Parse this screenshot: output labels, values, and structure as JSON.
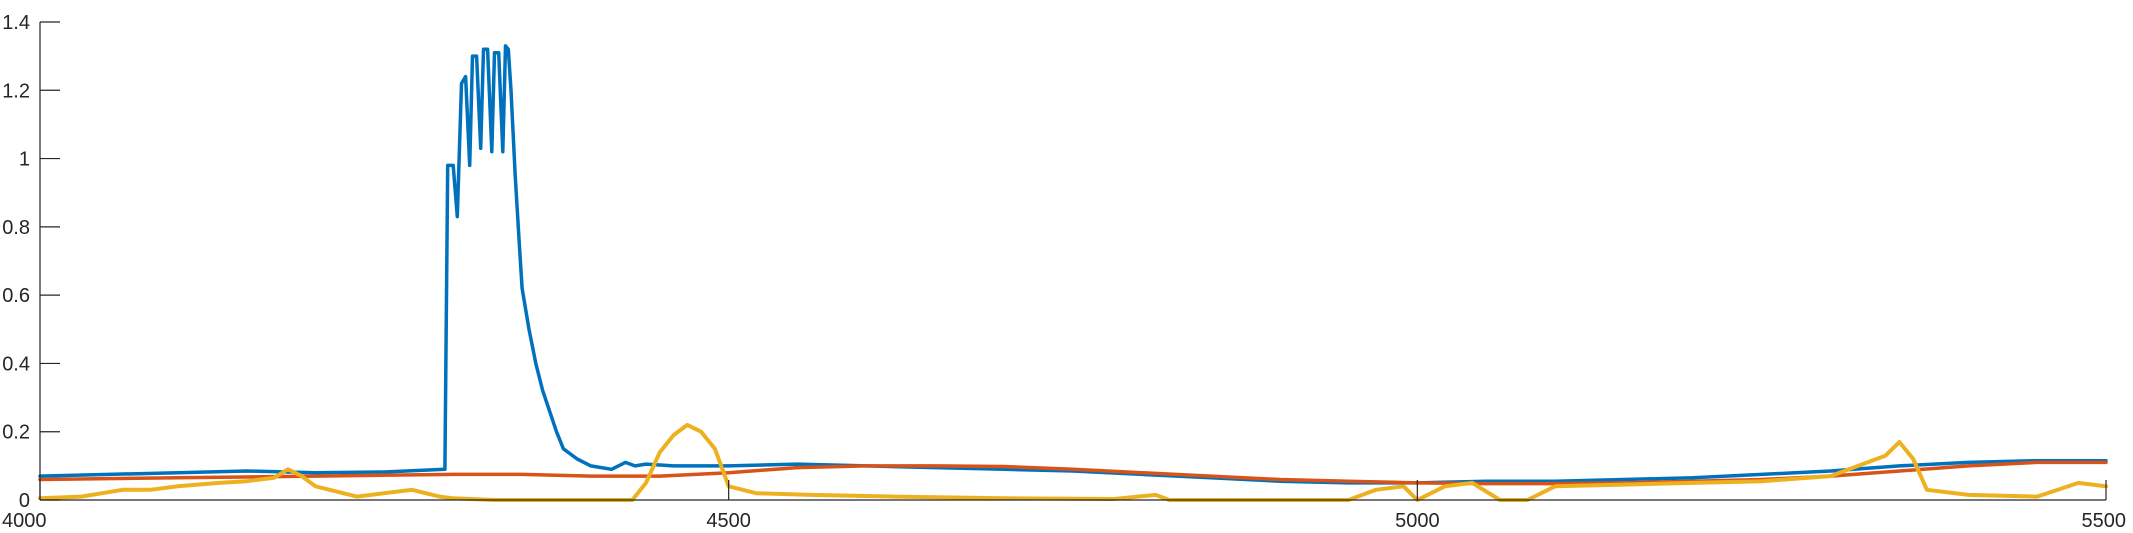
{
  "chart_data": {
    "type": "line",
    "title": "",
    "xlabel": "",
    "ylabel": "",
    "xlim": [
      4000,
      5500
    ],
    "ylim": [
      0,
      1.4
    ],
    "grid": false,
    "x_ticks": [
      4000,
      4500,
      5000,
      5500
    ],
    "y_ticks": [
      0,
      0.2,
      0.4,
      0.6,
      0.8,
      1,
      1.2,
      1.4
    ],
    "x_tick_labels": [
      "4000",
      "4500",
      "5000",
      "5500"
    ],
    "y_tick_labels": [
      "0",
      "0.2",
      "0.4",
      "0.6",
      "0.8",
      "1",
      "1.2",
      "1.4"
    ],
    "series": [
      {
        "color": "#0072BD",
        "x": [
          4000,
          4050,
          4100,
          4150,
          4200,
          4250,
          4294,
          4296,
          4300,
          4303,
          4306,
          4309,
          4312,
          4314,
          4317,
          4320,
          4322,
          4325,
          4328,
          4330,
          4333,
          4336,
          4338,
          4340,
          4342,
          4345,
          4348,
          4350,
          4355,
          4360,
          4365,
          4370,
          4375,
          4380,
          4390,
          4400,
          4415,
          4425,
          4432,
          4440,
          4460,
          4480,
          4500,
          4550,
          4600,
          4650,
          4700,
          4750,
          4800,
          4850,
          4900,
          4950,
          5000,
          5050,
          5100,
          5150,
          5200,
          5250,
          5300,
          5350,
          5400,
          5450,
          5500
        ],
        "y": [
          0.07,
          0.075,
          0.08,
          0.085,
          0.08,
          0.082,
          0.09,
          0.98,
          0.98,
          0.83,
          1.22,
          1.24,
          0.98,
          1.3,
          1.3,
          1.03,
          1.32,
          1.32,
          1.02,
          1.31,
          1.31,
          1.02,
          1.33,
          1.32,
          1.2,
          0.95,
          0.75,
          0.62,
          0.5,
          0.4,
          0.32,
          0.26,
          0.2,
          0.15,
          0.12,
          0.1,
          0.09,
          0.11,
          0.1,
          0.105,
          0.1,
          0.1,
          0.1,
          0.105,
          0.1,
          0.095,
          0.09,
          0.085,
          0.075,
          0.065,
          0.055,
          0.05,
          0.05,
          0.055,
          0.055,
          0.06,
          0.065,
          0.075,
          0.085,
          0.1,
          0.11,
          0.115,
          0.115
        ]
      },
      {
        "color": "#D95319",
        "x": [
          4000,
          4100,
          4200,
          4300,
          4350,
          4400,
          4450,
          4500,
          4550,
          4600,
          4650,
          4700,
          4750,
          4800,
          4850,
          4900,
          4950,
          5000,
          5050,
          5100,
          5150,
          5200,
          5250,
          5300,
          5350,
          5400,
          5450,
          5500
        ],
        "y": [
          0.06,
          0.065,
          0.07,
          0.075,
          0.075,
          0.07,
          0.07,
          0.08,
          0.095,
          0.1,
          0.1,
          0.098,
          0.09,
          0.08,
          0.07,
          0.06,
          0.055,
          0.05,
          0.048,
          0.048,
          0.05,
          0.055,
          0.06,
          0.07,
          0.085,
          0.1,
          0.11,
          0.11
        ]
      },
      {
        "color": "#EDB120",
        "x": [
          4000,
          4030,
          4060,
          4080,
          4100,
          4130,
          4150,
          4170,
          4180,
          4190,
          4200,
          4230,
          4250,
          4270,
          4290,
          4300,
          4330,
          4380,
          4430,
          4440,
          4450,
          4460,
          4470,
          4480,
          4490,
          4500,
          4520,
          4560,
          4620,
          4700,
          4780,
          4810,
          4820,
          4840,
          4900,
          4950,
          4970,
          4990,
          5000,
          5020,
          5040,
          5060,
          5080,
          5100,
          5150,
          5200,
          5250,
          5300,
          5320,
          5340,
          5350,
          5360,
          5370,
          5400,
          5450,
          5480,
          5500
        ],
        "y": [
          0.005,
          0.01,
          0.03,
          0.03,
          0.04,
          0.05,
          0.055,
          0.065,
          0.09,
          0.07,
          0.04,
          0.01,
          0.02,
          0.03,
          0.01,
          0.005,
          0.0,
          0.0,
          0.0,
          0.05,
          0.14,
          0.19,
          0.22,
          0.2,
          0.15,
          0.04,
          0.02,
          0.015,
          0.01,
          0.005,
          0.003,
          0.015,
          0.0,
          0.0,
          0.0,
          0.0,
          0.03,
          0.04,
          0.0,
          0.04,
          0.05,
          0.0,
          0.0,
          0.04,
          0.045,
          0.05,
          0.055,
          0.07,
          0.1,
          0.13,
          0.17,
          0.12,
          0.03,
          0.015,
          0.01,
          0.05,
          0.04
        ]
      }
    ]
  }
}
